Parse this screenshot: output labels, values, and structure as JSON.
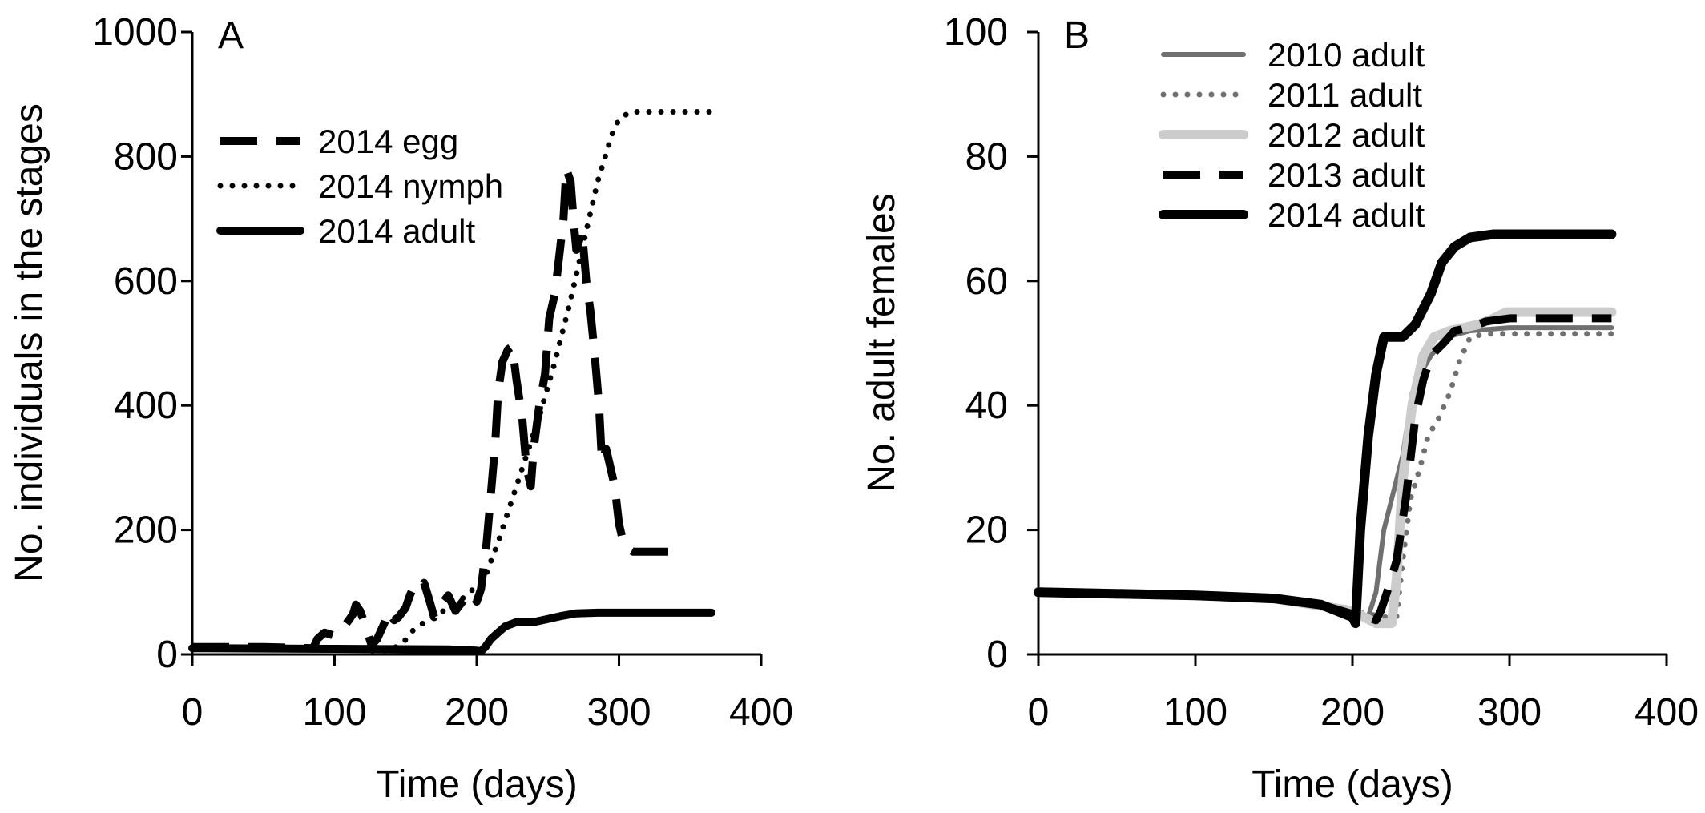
{
  "chart_data": [
    {
      "type": "line",
      "panel_label": "A",
      "xlabel": "Time (days)",
      "ylabel": "No. individuals in the stages",
      "xlim": [
        0,
        400
      ],
      "ylim": [
        0,
        1000
      ],
      "xticks": [
        0,
        100,
        200,
        300,
        400
      ],
      "yticks": [
        0,
        200,
        400,
        600,
        800,
        1000
      ],
      "grid": false,
      "legend_position": "upper-left",
      "series": [
        {
          "name": "2014 egg",
          "style": "dashed",
          "color": "#000000",
          "points": [
            [
              0,
              12
            ],
            [
              50,
              12
            ],
            [
              85,
              10
            ],
            [
              88,
              25
            ],
            [
              93,
              35
            ],
            [
              100,
              30
            ],
            [
              105,
              40
            ],
            [
              110,
              55
            ],
            [
              113,
              65
            ],
            [
              115,
              80
            ],
            [
              118,
              70
            ],
            [
              122,
              45
            ],
            [
              126,
              15
            ],
            [
              130,
              25
            ],
            [
              135,
              50
            ],
            [
              138,
              70
            ],
            [
              142,
              55
            ],
            [
              145,
              60
            ],
            [
              150,
              75
            ],
            [
              153,
              95
            ],
            [
              156,
              110
            ],
            [
              160,
              105
            ],
            [
              163,
              115
            ],
            [
              167,
              85
            ],
            [
              170,
              60
            ],
            [
              175,
              80
            ],
            [
              180,
              95
            ],
            [
              185,
              70
            ],
            [
              190,
              85
            ],
            [
              195,
              100
            ],
            [
              200,
              85
            ],
            [
              203,
              105
            ],
            [
              207,
              180
            ],
            [
              210,
              260
            ],
            [
              213,
              340
            ],
            [
              215,
              420
            ],
            [
              218,
              470
            ],
            [
              222,
              490
            ],
            [
              225,
              495
            ],
            [
              228,
              440
            ],
            [
              232,
              380
            ],
            [
              235,
              300
            ],
            [
              238,
              270
            ],
            [
              240,
              330
            ],
            [
              244,
              400
            ],
            [
              248,
              450
            ],
            [
              251,
              540
            ],
            [
              255,
              580
            ],
            [
              258,
              640
            ],
            [
              261,
              700
            ],
            [
              263,
              780
            ],
            [
              266,
              760
            ],
            [
              268,
              700
            ],
            [
              270,
              650
            ],
            [
              274,
              680
            ],
            [
              277,
              600
            ],
            [
              280,
              550
            ],
            [
              283,
              480
            ],
            [
              286,
              400
            ],
            [
              288,
              310
            ],
            [
              291,
              330
            ],
            [
              294,
              300
            ],
            [
              297,
              270
            ],
            [
              300,
              210
            ],
            [
              303,
              180
            ],
            [
              306,
              170
            ],
            [
              310,
              165
            ],
            [
              345,
              165
            ]
          ]
        },
        {
          "name": "2014 nymph",
          "style": "dotted",
          "color": "#000000",
          "points": [
            [
              0,
              10
            ],
            [
              80,
              10
            ],
            [
              120,
              8
            ],
            [
              130,
              5
            ],
            [
              140,
              8
            ],
            [
              148,
              18
            ],
            [
              155,
              38
            ],
            [
              165,
              55
            ],
            [
              175,
              68
            ],
            [
              185,
              80
            ],
            [
              195,
              100
            ],
            [
              205,
              120
            ],
            [
              215,
              180
            ],
            [
              225,
              250
            ],
            [
              235,
              320
            ],
            [
              245,
              390
            ],
            [
              255,
              470
            ],
            [
              265,
              560
            ],
            [
              275,
              660
            ],
            [
              285,
              760
            ],
            [
              295,
              835
            ],
            [
              300,
              860
            ],
            [
              308,
              872
            ],
            [
              365,
              872
            ]
          ]
        },
        {
          "name": "2014 adult",
          "style": "solid",
          "color": "#000000",
          "points": [
            [
              0,
              10
            ],
            [
              100,
              9
            ],
            [
              180,
              8
            ],
            [
              200,
              6
            ],
            [
              203,
              5
            ],
            [
              206,
              12
            ],
            [
              210,
              25
            ],
            [
              215,
              35
            ],
            [
              220,
              45
            ],
            [
              228,
              52
            ],
            [
              240,
              52
            ],
            [
              250,
              57
            ],
            [
              260,
              62
            ],
            [
              270,
              66
            ],
            [
              285,
              67
            ],
            [
              365,
              67
            ]
          ]
        }
      ]
    },
    {
      "type": "line",
      "panel_label": "B",
      "xlabel": "Time (days)",
      "ylabel": "No. adult females",
      "xlim": [
        0,
        400
      ],
      "ylim": [
        0,
        100
      ],
      "xticks": [
        0,
        100,
        200,
        300,
        400
      ],
      "yticks": [
        0,
        20,
        40,
        60,
        80,
        100
      ],
      "grid": false,
      "legend_position": "top-center",
      "series": [
        {
          "name": "2010 adult",
          "style": "solid-thin",
          "color": "#707070",
          "points": [
            [
              0,
              10
            ],
            [
              100,
              9.5
            ],
            [
              150,
              9
            ],
            [
              180,
              7.5
            ],
            [
              200,
              6
            ],
            [
              210,
              6
            ],
            [
              215,
              10
            ],
            [
              220,
              20
            ],
            [
              225,
              25
            ],
            [
              232,
              32
            ],
            [
              238,
              42
            ],
            [
              243,
              45
            ],
            [
              250,
              48
            ],
            [
              260,
              51
            ],
            [
              275,
              52
            ],
            [
              300,
              52.5
            ],
            [
              365,
              52.5
            ]
          ]
        },
        {
          "name": "2011 adult",
          "style": "dotted",
          "color": "#707070",
          "points": [
            [
              0,
              10
            ],
            [
              100,
              9.5
            ],
            [
              150,
              9
            ],
            [
              200,
              7
            ],
            [
              220,
              6
            ],
            [
              228,
              6
            ],
            [
              232,
              15
            ],
            [
              237,
              25
            ],
            [
              243,
              30
            ],
            [
              248,
              35
            ],
            [
              255,
              38
            ],
            [
              262,
              42
            ],
            [
              268,
              47
            ],
            [
              275,
              51
            ],
            [
              285,
              51.5
            ],
            [
              365,
              51.5
            ]
          ]
        },
        {
          "name": "2012 adult",
          "style": "solid-thick",
          "color": "#cccccc",
          "points": [
            [
              0,
              10
            ],
            [
              100,
              9.5
            ],
            [
              150,
              9
            ],
            [
              200,
              7
            ],
            [
              215,
              5
            ],
            [
              225,
              5
            ],
            [
              228,
              12
            ],
            [
              232,
              28
            ],
            [
              238,
              40
            ],
            [
              245,
              48
            ],
            [
              252,
              51
            ],
            [
              262,
              52
            ],
            [
              280,
              53
            ],
            [
              290,
              54
            ],
            [
              298,
              55
            ],
            [
              365,
              55
            ]
          ]
        },
        {
          "name": "2013 adult",
          "style": "dashed",
          "color": "#000000",
          "points": [
            [
              0,
              10
            ],
            [
              100,
              9.5
            ],
            [
              150,
              9
            ],
            [
              180,
              8
            ],
            [
              200,
              6.5
            ],
            [
              210,
              6
            ],
            [
              215,
              5.5
            ],
            [
              218,
              7
            ],
            [
              222,
              10
            ],
            [
              228,
              15
            ],
            [
              234,
              25
            ],
            [
              240,
              38
            ],
            [
              245,
              44
            ],
            [
              250,
              48
            ],
            [
              258,
              50
            ],
            [
              265,
              52
            ],
            [
              275,
              52.5
            ],
            [
              285,
              53.5
            ],
            [
              300,
              54
            ],
            [
              365,
              54
            ]
          ]
        },
        {
          "name": "2014 adult",
          "style": "solid-thick",
          "color": "#000000",
          "points": [
            [
              0,
              10
            ],
            [
              100,
              9.5
            ],
            [
              150,
              9
            ],
            [
              180,
              8
            ],
            [
              200,
              6
            ],
            [
              202,
              5
            ],
            [
              205,
              20
            ],
            [
              210,
              35
            ],
            [
              215,
              45
            ],
            [
              220,
              51
            ],
            [
              232,
              51
            ],
            [
              240,
              53
            ],
            [
              250,
              58
            ],
            [
              257,
              63
            ],
            [
              265,
              65.5
            ],
            [
              275,
              67
            ],
            [
              290,
              67.5
            ],
            [
              365,
              67.5
            ]
          ]
        }
      ]
    }
  ]
}
